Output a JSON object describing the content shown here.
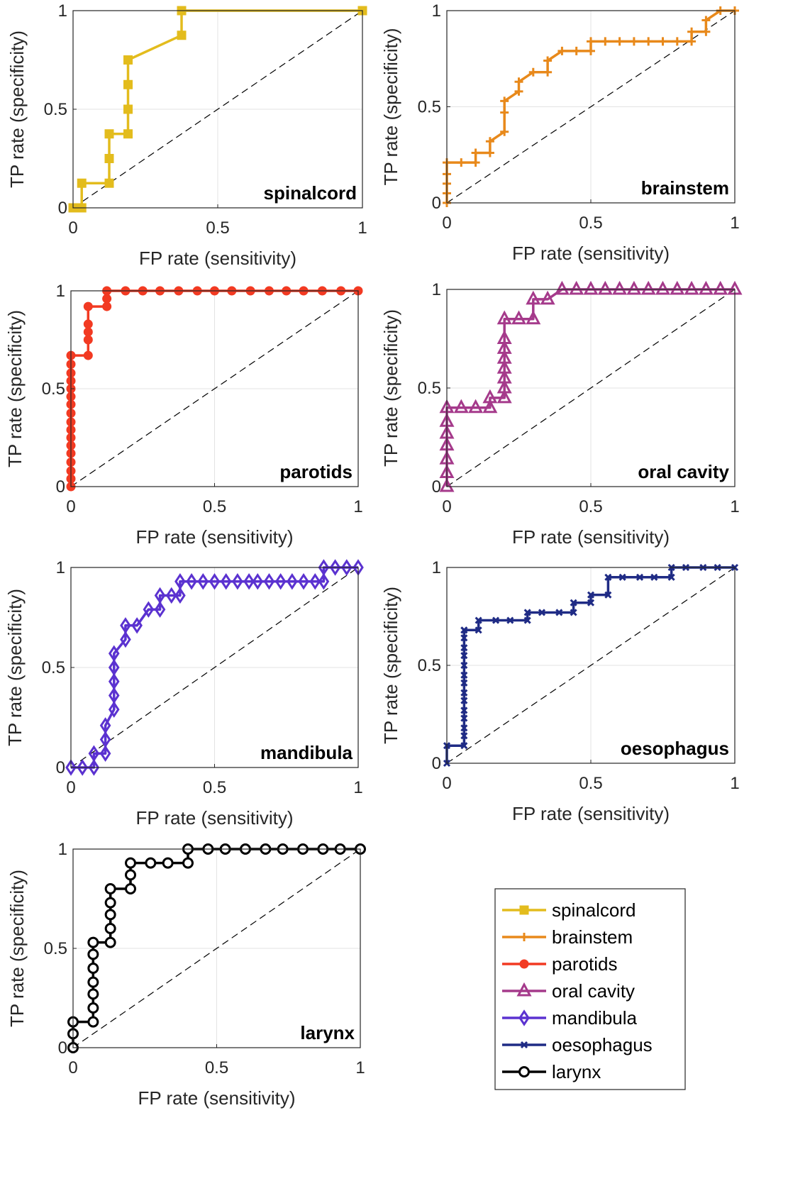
{
  "chart_data": [
    {
      "type": "line",
      "annotation": "spinalcord",
      "xlabel": "FP rate (sensitivity)",
      "ylabel": "TP rate (specificity)",
      "xlim": [
        0,
        1
      ],
      "ylim": [
        0,
        1
      ],
      "xticks": [
        "0",
        "0.5",
        "1"
      ],
      "yticks": [
        "0",
        "0.5",
        "1"
      ],
      "grid": true,
      "reference_line": "diagonal dashed",
      "series": [
        {
          "name": "spinalcord",
          "color": "#E3BC1D",
          "marker": "square",
          "x": [
            0,
            0.03,
            0.03,
            0.125,
            0.125,
            0.125,
            0.19,
            0.19,
            0.19,
            0.19,
            0.375,
            0.375,
            1.0
          ],
          "y": [
            0,
            0,
            0.125,
            0.125,
            0.25,
            0.375,
            0.375,
            0.5,
            0.625,
            0.75,
            0.875,
            1.0,
            1.0
          ]
        }
      ]
    },
    {
      "type": "line",
      "annotation": "brainstem",
      "xlabel": "FP rate (sensitivity)",
      "ylabel": "TP rate (specificity)",
      "xlim": [
        0,
        1
      ],
      "ylim": [
        0,
        1
      ],
      "xticks": [
        "0",
        "0.5",
        "1"
      ],
      "yticks": [
        "0",
        "0.5",
        "1"
      ],
      "grid": true,
      "reference_line": "diagonal dashed",
      "series": [
        {
          "name": "brainstem",
          "color": "#E8891B",
          "marker": "plus",
          "x": [
            0,
            0,
            0,
            0,
            0,
            0.05,
            0.1,
            0.1,
            0.15,
            0.15,
            0.2,
            0.2,
            0.2,
            0.25,
            0.25,
            0.3,
            0.35,
            0.35,
            0.4,
            0.45,
            0.5,
            0.5,
            0.55,
            0.6,
            0.65,
            0.7,
            0.75,
            0.8,
            0.85,
            0.85,
            0.9,
            0.9,
            0.95,
            1.0
          ],
          "y": [
            0,
            0.05,
            0.1,
            0.15,
            0.21,
            0.21,
            0.21,
            0.26,
            0.26,
            0.32,
            0.37,
            0.47,
            0.53,
            0.58,
            0.63,
            0.68,
            0.68,
            0.74,
            0.79,
            0.79,
            0.79,
            0.84,
            0.84,
            0.84,
            0.84,
            0.84,
            0.84,
            0.84,
            0.84,
            0.89,
            0.89,
            0.95,
            1.0,
            1.0
          ]
        }
      ]
    },
    {
      "type": "line",
      "annotation": "parotids",
      "xlabel": "FP rate (sensitivity)",
      "ylabel": "TP rate (specificity)",
      "xlim": [
        0,
        1
      ],
      "ylim": [
        0,
        1
      ],
      "xticks": [
        "0",
        "0.5",
        "1"
      ],
      "yticks": [
        "0",
        "0.5",
        "1"
      ],
      "grid": true,
      "reference_line": "diagonal dashed",
      "series": [
        {
          "name": "parotids",
          "color": "#F23A22",
          "marker": "circle",
          "x": [
            0,
            0,
            0,
            0,
            0,
            0,
            0,
            0,
            0,
            0,
            0,
            0,
            0,
            0,
            0,
            0,
            0,
            0.06,
            0.06,
            0.06,
            0.06,
            0.06,
            0.125,
            0.125,
            0.125,
            0.19,
            0.25,
            0.31,
            0.375,
            0.44,
            0.5,
            0.56,
            0.625,
            0.69,
            0.75,
            0.81,
            0.875,
            0.94,
            1.0
          ],
          "y": [
            0,
            0.04,
            0.08,
            0.125,
            0.17,
            0.21,
            0.25,
            0.29,
            0.33,
            0.375,
            0.42,
            0.46,
            0.5,
            0.54,
            0.58,
            0.625,
            0.67,
            0.67,
            0.75,
            0.79,
            0.83,
            0.92,
            0.92,
            0.96,
            1.0,
            1.0,
            1.0,
            1.0,
            1.0,
            1.0,
            1.0,
            1.0,
            1.0,
            1.0,
            1.0,
            1.0,
            1.0,
            1.0,
            1.0
          ]
        }
      ]
    },
    {
      "type": "line",
      "annotation": "oral cavity",
      "xlabel": "FP rate (sensitivity)",
      "ylabel": "TP rate (specificity)",
      "xlim": [
        0,
        1
      ],
      "ylim": [
        0,
        1
      ],
      "xticks": [
        "0",
        "0.5",
        "1"
      ],
      "yticks": [
        "0",
        "0.5",
        "1"
      ],
      "grid": true,
      "reference_line": "diagonal dashed",
      "series": [
        {
          "name": "oral cavity",
          "color": "#A53A8B",
          "marker": "triangle",
          "x": [
            0,
            0,
            0,
            0,
            0,
            0,
            0,
            0.05,
            0.1,
            0.15,
            0.15,
            0.2,
            0.2,
            0.2,
            0.2,
            0.2,
            0.2,
            0.2,
            0.2,
            0.25,
            0.3,
            0.3,
            0.35,
            0.4,
            0.45,
            0.5,
            0.55,
            0.6,
            0.65,
            0.7,
            0.75,
            0.8,
            0.85,
            0.9,
            0.95,
            1.0
          ],
          "y": [
            0,
            0.07,
            0.14,
            0.21,
            0.27,
            0.33,
            0.4,
            0.4,
            0.4,
            0.4,
            0.45,
            0.45,
            0.5,
            0.55,
            0.6,
            0.65,
            0.7,
            0.75,
            0.85,
            0.85,
            0.85,
            0.95,
            0.95,
            1.0,
            1.0,
            1.0,
            1.0,
            1.0,
            1.0,
            1.0,
            1.0,
            1.0,
            1.0,
            1.0,
            1.0,
            1.0
          ]
        }
      ]
    },
    {
      "type": "line",
      "annotation": "mandibula",
      "xlabel": "FP rate (sensitivity)",
      "ylabel": "TP rate (specificity)",
      "xlim": [
        0,
        1
      ],
      "ylim": [
        0,
        1
      ],
      "xticks": [
        "0",
        "0.5",
        "1"
      ],
      "yticks": [
        "0",
        "0.5",
        "1"
      ],
      "grid": true,
      "reference_line": "diagonal dashed",
      "series": [
        {
          "name": "mandibula",
          "color": "#5B32D0",
          "marker": "diamond",
          "x": [
            0,
            0.04,
            0.08,
            0.08,
            0.12,
            0.12,
            0.12,
            0.15,
            0.15,
            0.15,
            0.15,
            0.15,
            0.19,
            0.19,
            0.23,
            0.27,
            0.31,
            0.31,
            0.35,
            0.38,
            0.38,
            0.42,
            0.46,
            0.5,
            0.54,
            0.58,
            0.62,
            0.65,
            0.69,
            0.73,
            0.77,
            0.81,
            0.85,
            0.88,
            0.88,
            0.92,
            0.96,
            1.0
          ],
          "y": [
            0,
            0,
            0,
            0.07,
            0.07,
            0.14,
            0.21,
            0.29,
            0.36,
            0.43,
            0.5,
            0.57,
            0.64,
            0.71,
            0.71,
            0.79,
            0.79,
            0.86,
            0.86,
            0.86,
            0.93,
            0.93,
            0.93,
            0.93,
            0.93,
            0.93,
            0.93,
            0.93,
            0.93,
            0.93,
            0.93,
            0.93,
            0.93,
            0.93,
            1.0,
            1.0,
            1.0,
            1.0
          ]
        }
      ]
    },
    {
      "type": "line",
      "annotation": "oesophagus",
      "xlabel": "FP rate (sensitivity)",
      "ylabel": "TP rate (specificity)",
      "xlim": [
        0,
        1
      ],
      "ylim": [
        0,
        1
      ],
      "xticks": [
        "0",
        "0.5",
        "1"
      ],
      "yticks": [
        "0",
        "0.5",
        "1"
      ],
      "grid": true,
      "reference_line": "diagonal dashed",
      "series": [
        {
          "name": "oesophagus",
          "color": "#1F2B85",
          "marker": "cross",
          "x": [
            0,
            0,
            0.06,
            0.06,
            0.06,
            0.06,
            0.06,
            0.06,
            0.06,
            0.06,
            0.06,
            0.06,
            0.06,
            0.06,
            0.06,
            0.06,
            0.06,
            0.11,
            0.11,
            0.17,
            0.22,
            0.28,
            0.28,
            0.33,
            0.39,
            0.44,
            0.44,
            0.5,
            0.5,
            0.56,
            0.56,
            0.61,
            0.67,
            0.72,
            0.78,
            0.78,
            0.83,
            0.89,
            0.94,
            1.0
          ],
          "y": [
            0,
            0.09,
            0.09,
            0.14,
            0.18,
            0.23,
            0.27,
            0.32,
            0.36,
            0.41,
            0.45,
            0.5,
            0.55,
            0.59,
            0.64,
            0.68,
            0.68,
            0.68,
            0.73,
            0.73,
            0.73,
            0.73,
            0.77,
            0.77,
            0.77,
            0.77,
            0.82,
            0.82,
            0.86,
            0.86,
            0.95,
            0.95,
            0.95,
            0.95,
            0.95,
            1.0,
            1.0,
            1.0,
            1.0,
            1.0
          ]
        }
      ]
    },
    {
      "type": "line",
      "annotation": "larynx",
      "xlabel": "FP rate (sensitivity)",
      "ylabel": "TP rate (specificity)",
      "xlim": [
        0,
        1
      ],
      "ylim": [
        0,
        1
      ],
      "xticks": [
        "0",
        "0.5",
        "1"
      ],
      "yticks": [
        "0",
        "0.5",
        "1"
      ],
      "grid": true,
      "reference_line": "diagonal dashed",
      "series": [
        {
          "name": "larynx",
          "color": "#000000",
          "marker": "open-circle",
          "x": [
            0,
            0,
            0,
            0.07,
            0.07,
            0.07,
            0.07,
            0.07,
            0.07,
            0.07,
            0.13,
            0.13,
            0.13,
            0.13,
            0.13,
            0.2,
            0.2,
            0.2,
            0.27,
            0.33,
            0.4,
            0.4,
            0.47,
            0.53,
            0.6,
            0.67,
            0.73,
            0.8,
            0.87,
            0.93,
            1.0
          ],
          "y": [
            0,
            0.07,
            0.13,
            0.13,
            0.2,
            0.27,
            0.33,
            0.4,
            0.47,
            0.53,
            0.53,
            0.6,
            0.67,
            0.73,
            0.8,
            0.8,
            0.87,
            0.93,
            0.93,
            0.93,
            0.93,
            1.0,
            1.0,
            1.0,
            1.0,
            1.0,
            1.0,
            1.0,
            1.0,
            1.0,
            1.0
          ]
        }
      ]
    }
  ],
  "legend": {
    "entries": [
      {
        "label": "spinalcord",
        "color": "#E3BC1D",
        "marker": "square"
      },
      {
        "label": "brainstem",
        "color": "#E8891B",
        "marker": "plus"
      },
      {
        "label": "parotids",
        "color": "#F23A22",
        "marker": "circle"
      },
      {
        "label": "oral cavity",
        "color": "#A53A8B",
        "marker": "triangle"
      },
      {
        "label": "mandibula",
        "color": "#5B32D0",
        "marker": "diamond"
      },
      {
        "label": "oesophagus",
        "color": "#1F2B85",
        "marker": "cross"
      },
      {
        "label": "larynx",
        "color": "#000000",
        "marker": "open-circle"
      }
    ]
  }
}
